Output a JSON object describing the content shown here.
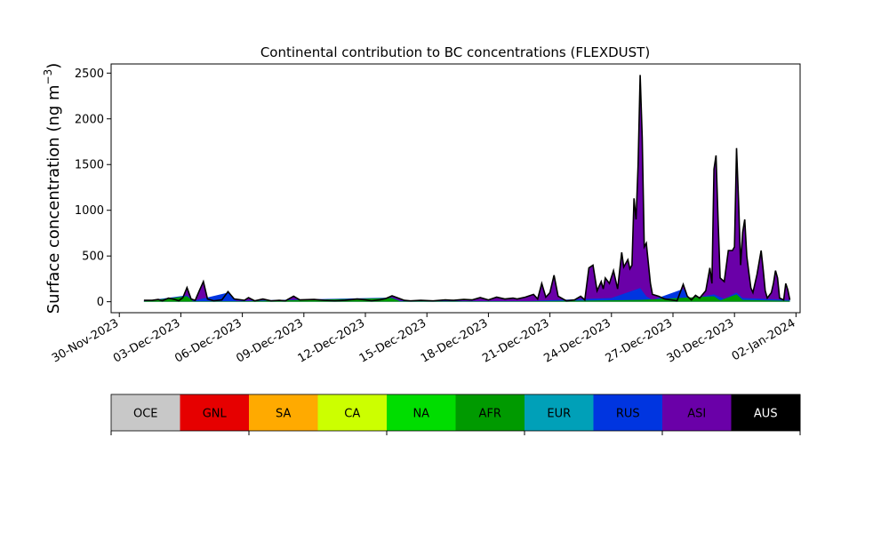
{
  "chart_data": {
    "type": "area",
    "title": "Continental contribution to BC concentrations (FLEXDUST)",
    "ylabel_main": "Surface concentration (ng m",
    "ylabel_exp": "−3",
    "ylabel_close": ")",
    "ylim": [
      -120,
      2600
    ],
    "yticks": [
      0,
      500,
      1000,
      1500,
      2000,
      2500
    ],
    "ytick_labels": [
      "0",
      "500",
      "1000",
      "1500",
      "2000",
      "2500"
    ],
    "xlim": [
      -0.4,
      33.2
    ],
    "xticks": [
      0,
      3,
      6,
      9,
      12,
      15,
      18,
      21,
      24,
      27,
      30,
      33
    ],
    "xtick_labels": [
      "30-Nov-2023",
      "03-Dec-2023",
      "06-Dec-2023",
      "09-Dec-2023",
      "12-Dec-2023",
      "15-Dec-2023",
      "18-Dec-2023",
      "21-Dec-2023",
      "24-Dec-2023",
      "27-Dec-2023",
      "30-Dec-2023",
      "02-Jan-2024"
    ],
    "x_units": "days after 30-Nov-2023",
    "total": [
      [
        1.2,
        15
      ],
      [
        1.6,
        15
      ],
      [
        1.9,
        25
      ],
      [
        2.1,
        10
      ],
      [
        2.4,
        40
      ],
      [
        2.7,
        25
      ],
      [
        2.9,
        10
      ],
      [
        3.1,
        45
      ],
      [
        3.3,
        155
      ],
      [
        3.5,
        30
      ],
      [
        3.7,
        15
      ],
      [
        3.9,
        120
      ],
      [
        4.1,
        220
      ],
      [
        4.3,
        30
      ],
      [
        4.6,
        10
      ],
      [
        5,
        20
      ],
      [
        5.3,
        110
      ],
      [
        5.6,
        30
      ],
      [
        6.1,
        15
      ],
      [
        6.3,
        45
      ],
      [
        6.6,
        10
      ],
      [
        7,
        30
      ],
      [
        7.4,
        10
      ],
      [
        7.8,
        15
      ],
      [
        8.1,
        10
      ],
      [
        8.5,
        60
      ],
      [
        8.8,
        20
      ],
      [
        9.5,
        25
      ],
      [
        10,
        15
      ],
      [
        10.5,
        10
      ],
      [
        11,
        15
      ],
      [
        11.6,
        30
      ],
      [
        12,
        20
      ],
      [
        12.3,
        10
      ],
      [
        12.7,
        20
      ],
      [
        13,
        35
      ],
      [
        13.3,
        65
      ],
      [
        13.6,
        40
      ],
      [
        13.9,
        15
      ],
      [
        14.2,
        10
      ],
      [
        14.7,
        15
      ],
      [
        15.3,
        10
      ],
      [
        15.9,
        20
      ],
      [
        16.3,
        15
      ],
      [
        16.8,
        25
      ],
      [
        17.2,
        20
      ],
      [
        17.6,
        45
      ],
      [
        18,
        20
      ],
      [
        18.4,
        50
      ],
      [
        18.8,
        30
      ],
      [
        19.2,
        40
      ],
      [
        19.4,
        30
      ],
      [
        19.8,
        50
      ],
      [
        20.2,
        80
      ],
      [
        20.4,
        30
      ],
      [
        20.6,
        200
      ],
      [
        20.8,
        50
      ],
      [
        21,
        100
      ],
      [
        21.2,
        290
      ],
      [
        21.4,
        60
      ],
      [
        21.8,
        10
      ],
      [
        22.2,
        20
      ],
      [
        22.5,
        60
      ],
      [
        22.7,
        20
      ],
      [
        22.9,
        370
      ],
      [
        23.1,
        400
      ],
      [
        23.3,
        120
      ],
      [
        23.5,
        220
      ],
      [
        23.6,
        140
      ],
      [
        23.7,
        260
      ],
      [
        23.9,
        200
      ],
      [
        24.1,
        340
      ],
      [
        24.3,
        140
      ],
      [
        24.5,
        540
      ],
      [
        24.6,
        380
      ],
      [
        24.8,
        460
      ],
      [
        24.9,
        360
      ],
      [
        25,
        400
      ],
      [
        25.1,
        1130
      ],
      [
        25.2,
        900
      ],
      [
        25.3,
        1500
      ],
      [
        25.4,
        2480
      ],
      [
        25.5,
        1800
      ],
      [
        25.6,
        600
      ],
      [
        25.7,
        640
      ],
      [
        25.8,
        420
      ],
      [
        25.9,
        200
      ],
      [
        26,
        80
      ],
      [
        26.3,
        60
      ],
      [
        26.6,
        30
      ],
      [
        26.9,
        20
      ],
      [
        27.2,
        10
      ],
      [
        27.5,
        190
      ],
      [
        27.7,
        60
      ],
      [
        27.9,
        20
      ],
      [
        28.1,
        70
      ],
      [
        28.3,
        40
      ],
      [
        28.6,
        120
      ],
      [
        28.8,
        370
      ],
      [
        28.9,
        200
      ],
      [
        29,
        1450
      ],
      [
        29.1,
        1600
      ],
      [
        29.2,
        900
      ],
      [
        29.3,
        260
      ],
      [
        29.5,
        220
      ],
      [
        29.7,
        560
      ],
      [
        29.9,
        560
      ],
      [
        30,
        600
      ],
      [
        30.1,
        1680
      ],
      [
        30.2,
        1100
      ],
      [
        30.3,
        400
      ],
      [
        30.4,
        760
      ],
      [
        30.5,
        900
      ],
      [
        30.6,
        500
      ],
      [
        30.7,
        320
      ],
      [
        30.8,
        150
      ],
      [
        30.9,
        100
      ],
      [
        31.1,
        300
      ],
      [
        31.3,
        560
      ],
      [
        31.4,
        350
      ],
      [
        31.5,
        120
      ],
      [
        31.6,
        40
      ],
      [
        31.8,
        100
      ],
      [
        31.9,
        200
      ],
      [
        32,
        340
      ],
      [
        32.1,
        260
      ],
      [
        32.2,
        40
      ],
      [
        32.4,
        20
      ],
      [
        32.5,
        200
      ],
      [
        32.6,
        130
      ],
      [
        32.7,
        20
      ]
    ],
    "series_bands": [
      {
        "name": "AFR",
        "color": "#009a00",
        "points": [
          [
            1.2,
            5
          ],
          [
            3.3,
            60
          ],
          [
            3.6,
            5
          ],
          [
            6,
            5
          ],
          [
            13.3,
            40
          ],
          [
            13.7,
            5
          ],
          [
            20,
            5
          ],
          [
            25.4,
            20
          ],
          [
            29,
            60
          ],
          [
            29.3,
            15
          ],
          [
            30.1,
            80
          ],
          [
            30.4,
            20
          ],
          [
            32.7,
            10
          ]
        ]
      },
      {
        "name": "RUS",
        "color": "#0035e0",
        "points": [
          [
            1.2,
            8
          ],
          [
            3.3,
            70
          ],
          [
            3.6,
            10
          ],
          [
            5.3,
            100
          ],
          [
            5.7,
            10
          ],
          [
            13.3,
            45
          ],
          [
            13.7,
            10
          ],
          [
            20,
            8
          ],
          [
            24,
            40
          ],
          [
            25.4,
            150
          ],
          [
            25.7,
            60
          ],
          [
            26,
            20
          ],
          [
            27.5,
            140
          ],
          [
            27.8,
            30
          ],
          [
            29,
            80
          ],
          [
            29.5,
            30
          ],
          [
            30.1,
            100
          ],
          [
            30.4,
            40
          ],
          [
            32.7,
            20
          ]
        ]
      }
    ],
    "legend_labels": [
      "OCE",
      "GNL",
      "SA",
      "CA",
      "NA",
      "AFR",
      "EUR",
      "RUS",
      "ASI",
      "AUS"
    ],
    "legend_colors": [
      "#c8c8c8",
      "#e60000",
      "#ffaa00",
      "#ccff00",
      "#00dd00",
      "#009a00",
      "#00a0b8",
      "#0035e0",
      "#6a00a8",
      "#000000"
    ],
    "legend_text_colors": [
      "#000000",
      "#000000",
      "#000000",
      "#000000",
      "#000000",
      "#000000",
      "#000000",
      "#000000",
      "#000000",
      "#ffffff"
    ],
    "asi_color": "#6a00a8"
  }
}
